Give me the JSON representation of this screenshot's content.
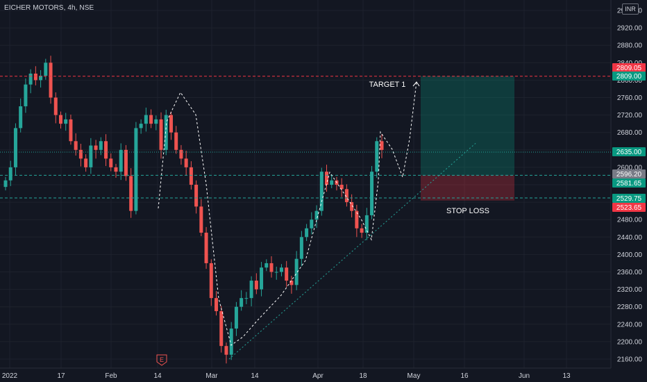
{
  "header": {
    "symbol": "EICHER MOTORS, 4h, NSE",
    "currency": "INR"
  },
  "colors": {
    "background": "#131722",
    "up": "#26a69a",
    "down": "#ef5350",
    "grid": "#1e222d",
    "text": "#d1d4dc"
  },
  "chart_data": {
    "type": "candlestick",
    "y_ticks": [
      "2960.00",
      "2920.00",
      "2880.00",
      "2840.00",
      "2800.00",
      "2760.00",
      "2720.00",
      "2680.00",
      "2640.00",
      "2600.00",
      "2560.00",
      "2520.00",
      "2480.00",
      "2440.00",
      "2400.00",
      "2360.00",
      "2320.00",
      "2280.00",
      "2240.00",
      "2200.00",
      "2160.00"
    ],
    "y_tick_values": [
      2960,
      2920,
      2880,
      2840,
      2800,
      2760,
      2720,
      2680,
      2640,
      2600,
      2560,
      2520,
      2480,
      2440,
      2400,
      2360,
      2320,
      2280,
      2240,
      2200,
      2160
    ],
    "ylim": [
      2150,
      2970
    ],
    "x_ticks": [
      "2022",
      "17",
      "Feb",
      "14",
      "Mar",
      "14",
      "Apr",
      "18",
      "May",
      "16",
      "Jun",
      "13"
    ],
    "series": [
      {
        "approx_closes": [
          2570,
          2600,
          2690,
          2740,
          2790,
          2815,
          2800,
          2810,
          2840,
          2760,
          2720,
          2700,
          2710,
          2660,
          2640,
          2620,
          2600,
          2650,
          2640,
          2660,
          2620,
          2600,
          2590,
          2640,
          2580,
          2500,
          2690,
          2700,
          2720,
          2700,
          2710,
          2640,
          2720,
          2680,
          2640,
          2620,
          2600,
          2560,
          2510,
          2450,
          2380,
          2300,
          2270,
          2190,
          2170,
          2230,
          2280,
          2300,
          2300,
          2340,
          2320,
          2370,
          2380,
          2360,
          2360,
          2370,
          2340,
          2330,
          2390,
          2440,
          2460,
          2480,
          2500,
          2590,
          2560,
          2570,
          2560,
          2550,
          2520,
          2500,
          2460,
          2450,
          2490,
          2590,
          2660,
          2640
        ]
      }
    ],
    "levels": [
      {
        "label": "2809.05",
        "value": 2809.05,
        "color": "#f23645"
      },
      {
        "label": "2809.00",
        "value": 2809.0,
        "color": "#089981"
      },
      {
        "label": "2635.00",
        "value": 2635.0,
        "color": "#089981"
      },
      {
        "label": "2596.20",
        "value": 2596.2,
        "color": "#787b86"
      },
      {
        "label": "2581.65",
        "value": 2581.65,
        "color": "#089981"
      },
      {
        "label": "2529.75",
        "value": 2529.75,
        "color": "#089981"
      },
      {
        "label": "2523.65",
        "value": 2523.65,
        "color": "#f23645"
      }
    ],
    "annotations": {
      "target": "TARGET 1",
      "stop": "STOP LOSS",
      "event": "E"
    },
    "position": {
      "entry": 2581.65,
      "target": 2809.0,
      "stop": 2523.65
    }
  }
}
